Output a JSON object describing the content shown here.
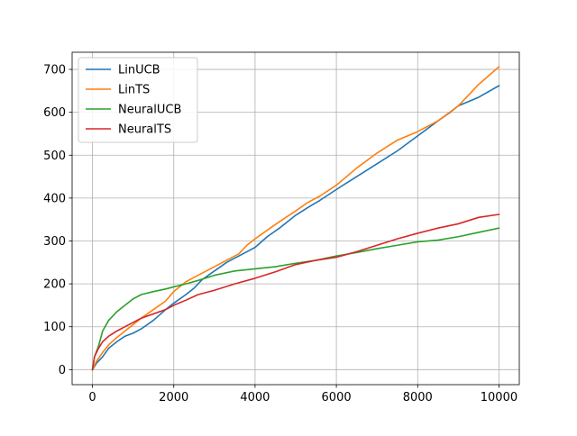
{
  "chart_data": {
    "type": "line",
    "title": "",
    "xlabel": "",
    "ylabel": "",
    "xlim": [
      -500,
      10500
    ],
    "ylim": [
      -35,
      740
    ],
    "xticks": [
      0,
      2000,
      4000,
      6000,
      8000,
      10000
    ],
    "yticks": [
      0,
      100,
      200,
      300,
      400,
      500,
      600,
      700
    ],
    "grid": true,
    "legend_position": "top-left",
    "series": [
      {
        "name": "LinUCB",
        "color": "#1f77b4",
        "x": [
          0,
          100,
          250,
          400,
          600,
          800,
          1000,
          1200,
          1500,
          1800,
          2000,
          2300,
          2500,
          2700,
          3000,
          3300,
          3600,
          3800,
          4000,
          4300,
          4600,
          5000,
          5300,
          5600,
          6000,
          6500,
          7000,
          7500,
          8000,
          8500,
          8800,
          9000,
          9500,
          10000
        ],
        "y": [
          0,
          15,
          30,
          50,
          65,
          78,
          85,
          95,
          115,
          140,
          155,
          175,
          190,
          210,
          230,
          250,
          265,
          275,
          285,
          310,
          330,
          360,
          378,
          395,
          420,
          450,
          480,
          510,
          545,
          580,
          600,
          615,
          635,
          662
        ]
      },
      {
        "name": "LinTS",
        "color": "#ff7f0e",
        "x": [
          0,
          100,
          250,
          400,
          600,
          800,
          1000,
          1200,
          1500,
          1800,
          2000,
          2300,
          2500,
          2800,
          3000,
          3300,
          3600,
          3800,
          4000,
          4300,
          4600,
          5000,
          5300,
          5600,
          6000,
          6500,
          7000,
          7500,
          8000,
          8500,
          9000,
          9500,
          10000
        ],
        "y": [
          0,
          20,
          40,
          58,
          75,
          90,
          105,
          120,
          140,
          160,
          182,
          205,
          215,
          230,
          240,
          255,
          270,
          290,
          305,
          325,
          345,
          370,
          390,
          405,
          430,
          470,
          505,
          535,
          555,
          580,
          615,
          665,
          706
        ]
      },
      {
        "name": "NeuralUCB",
        "color": "#2ca02c",
        "x": [
          0,
          50,
          150,
          250,
          400,
          600,
          800,
          1000,
          1200,
          1500,
          1800,
          2000,
          2300,
          2600,
          3000,
          3500,
          4000,
          4500,
          5000,
          5500,
          6000,
          6500,
          7000,
          7500,
          8000,
          8500,
          9000,
          9500,
          10000
        ],
        "y": [
          0,
          30,
          55,
          90,
          115,
          135,
          150,
          165,
          175,
          182,
          188,
          193,
          200,
          208,
          220,
          230,
          235,
          240,
          248,
          255,
          265,
          273,
          282,
          290,
          298,
          302,
          310,
          320,
          330
        ]
      },
      {
        "name": "NeuralTS",
        "color": "#d62728",
        "x": [
          0,
          50,
          150,
          250,
          400,
          600,
          800,
          1000,
          1200,
          1500,
          1800,
          2000,
          2300,
          2600,
          3000,
          3500,
          4000,
          4500,
          5000,
          5500,
          6000,
          6500,
          7000,
          7500,
          8000,
          8500,
          9000,
          9500,
          10000
        ],
        "y": [
          0,
          30,
          50,
          65,
          78,
          90,
          100,
          110,
          120,
          130,
          140,
          150,
          162,
          175,
          185,
          200,
          213,
          228,
          245,
          255,
          262,
          275,
          290,
          305,
          318,
          330,
          340,
          355,
          362
        ]
      }
    ]
  }
}
